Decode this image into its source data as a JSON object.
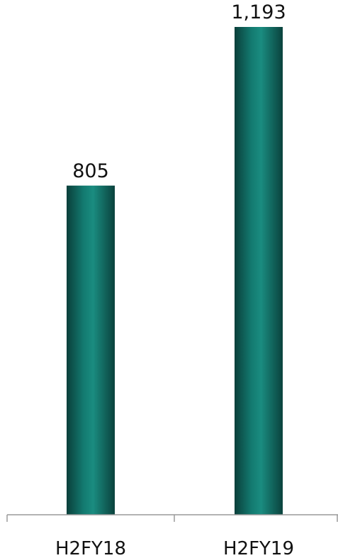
{
  "chart_data": {
    "type": "bar",
    "categories": [
      "H2FY18",
      "H2FY19"
    ],
    "values": [
      805,
      1193
    ],
    "value_labels": [
      "805",
      "1,193"
    ],
    "title": "",
    "xlabel": "",
    "ylabel": "",
    "ylim": [
      0,
      1193
    ],
    "grid": false,
    "legend": "none",
    "colors": {
      "bar_dark": "#0b4a44",
      "bar_mid": "#137a70",
      "bar_highlight": "#1a8c80",
      "axis": "#9a9a9a"
    }
  }
}
